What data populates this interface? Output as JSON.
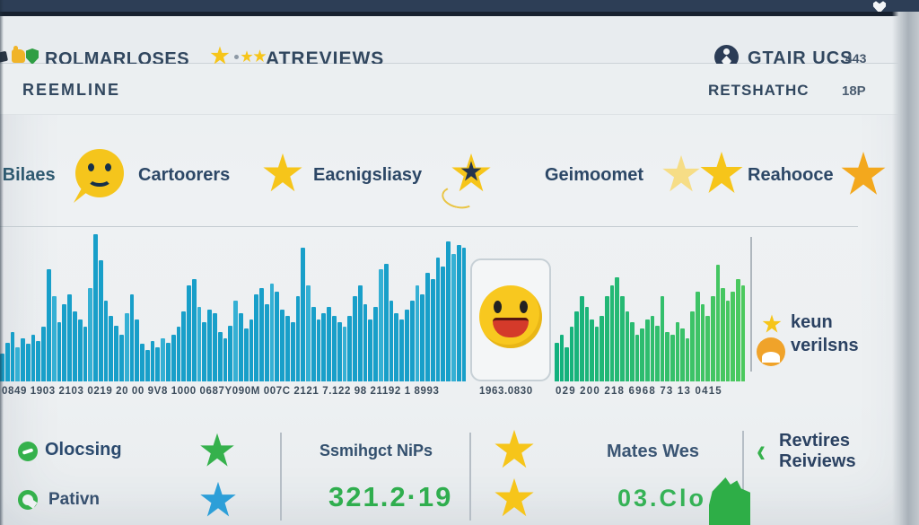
{
  "topbar": {
    "heart_glyph": ""
  },
  "header": {
    "brand": "ROLMARLOSES",
    "center_label": "ATREVIEWS",
    "account_label": "GTAIR UCS",
    "account_count": "443",
    "subnav_left": "REEMLINE",
    "subnav_right_label": "RETSHATHC",
    "subnav_right_value": "18P"
  },
  "stats": {
    "item0_label": "e Bilaes",
    "item1_label": "Cartoorers",
    "item2_label": "Eacnigsliasy",
    "item3_label": "Geimoomet",
    "item4_label": "Reahooce"
  },
  "chart_data": {
    "type": "bar",
    "title": "",
    "xlabel": "",
    "ylabel": "",
    "ylim": [
      0,
      1
    ],
    "grid": false,
    "legend_position": "right",
    "legend": {
      "line1": "keun",
      "line2": "verilsns"
    },
    "series": [
      {
        "name": "blue-reviews",
        "color": "#189fc9",
        "values": [
          0.18,
          0.25,
          0.32,
          0.22,
          0.28,
          0.24,
          0.3,
          0.26,
          0.35,
          0.72,
          0.55,
          0.38,
          0.5,
          0.56,
          0.45,
          0.4,
          0.35,
          0.6,
          0.95,
          0.78,
          0.52,
          0.42,
          0.36,
          0.3,
          0.44,
          0.56,
          0.4,
          0.24,
          0.2,
          0.26,
          0.22,
          0.28,
          0.25,
          0.3,
          0.35,
          0.45,
          0.62,
          0.66,
          0.48,
          0.38,
          0.46,
          0.44,
          0.32,
          0.28,
          0.36,
          0.52,
          0.44,
          0.34,
          0.4,
          0.56,
          0.6,
          0.5,
          0.63,
          0.58,
          0.46,
          0.42,
          0.38,
          0.55,
          0.86,
          0.62,
          0.48,
          0.4,
          0.44,
          0.48,
          0.42,
          0.38,
          0.35,
          0.42,
          0.55,
          0.62,
          0.5,
          0.4,
          0.48,
          0.72,
          0.76,
          0.52,
          0.44,
          0.4,
          0.46,
          0.52,
          0.62,
          0.56,
          0.7,
          0.66,
          0.8,
          0.74,
          0.9,
          0.82,
          0.88,
          0.86
        ]
      },
      {
        "name": "green-reviews",
        "color_start": "#12b17e",
        "color_end": "#4cc95e",
        "values": [
          0.25,
          0.3,
          0.22,
          0.35,
          0.45,
          0.55,
          0.48,
          0.4,
          0.35,
          0.42,
          0.55,
          0.62,
          0.67,
          0.55,
          0.45,
          0.38,
          0.3,
          0.34,
          0.4,
          0.42,
          0.36,
          0.55,
          0.32,
          0.3,
          0.38,
          0.34,
          0.28,
          0.45,
          0.58,
          0.5,
          0.42,
          0.55,
          0.75,
          0.6,
          0.52,
          0.58,
          0.66,
          0.62
        ]
      }
    ],
    "x_tick_labels": {
      "left": "0849 1903 2103 0219 20 00 9V8 1000 0687Y090M 007C 2121 7.122 98 21192 1 8993",
      "mid": "1963.0830",
      "right": "029 200 218 6968 73 13 0415"
    }
  },
  "summary": {
    "row1": {
      "label": "Olocsing",
      "center_label": "Ssmihgct NiPs",
      "mid_label": "Mates Wes",
      "right_line1": "Revtires",
      "right_line2": "Reiviews",
      "chevron": "‹"
    },
    "row2": {
      "label": "Pativn",
      "value": "321.2·19",
      "value2": "03.Clo"
    }
  },
  "colors": {
    "navy_text": "#2b3f5e",
    "bar_blue": "#189fc9",
    "bar_green_start": "#12b17e",
    "bar_green_end": "#4cc95e",
    "green_accent": "#35b14c",
    "value_green": "#2fae4e",
    "star_gold": "#f6c51a",
    "star_pale": "#f6dd86",
    "star_orange": "#f3a81d",
    "star_blue": "#2d9fd8",
    "star_green": "#35b14c"
  }
}
